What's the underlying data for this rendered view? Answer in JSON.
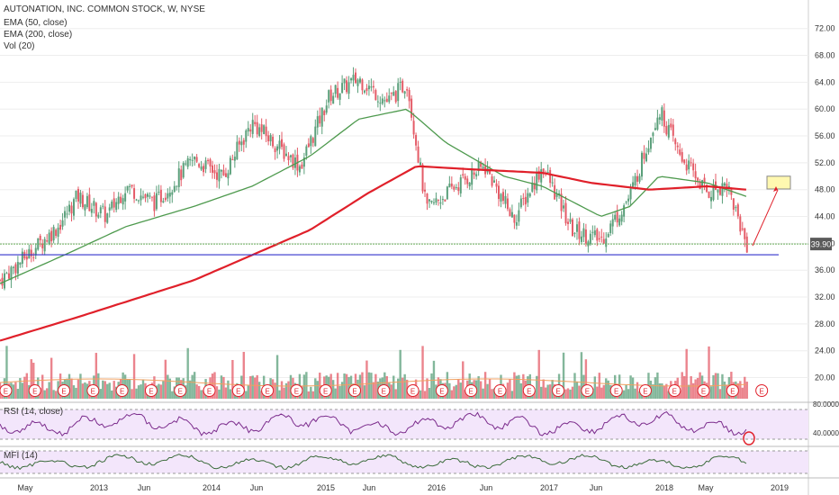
{
  "legend": {
    "title": "AUTONATION, INC. COMMON STOCK, W, NYSE",
    "indicators": [
      "EMA (50, close)",
      "EMA (200, close)",
      "Vol (20)"
    ]
  },
  "rsi_label": "RSI (14, close)",
  "mfi_label": "MFI (14)",
  "price_badge": "39.90",
  "colors": {
    "up": "#5a9f7a",
    "down": "#e45b67",
    "ema50": "#4e9a4e",
    "ema200": "#e0202a",
    "support": "#3333cc",
    "price_line": "#6aaf5a",
    "rsi": "#7b2b8c",
    "mfi": "#3b6b3b",
    "pane_bg": "#f3e6fb",
    "target_box": "#fff8b0"
  },
  "chart_data": {
    "type": "candlestick",
    "title": "AUTONATION, INC. COMMON STOCK, W, NYSE",
    "y_ticks": [
      "72.00",
      "68.00",
      "64.00",
      "60.00",
      "56.00",
      "52.00",
      "48.00",
      "44.00",
      "40.00",
      "36.00",
      "32.00",
      "28.00",
      "24.00",
      "20.00"
    ],
    "ylim": [
      18.6,
      73.3
    ],
    "x_ticks": [
      "May",
      "2013",
      "Jun",
      "2014",
      "Jun",
      "2015",
      "Jun",
      "2016",
      "Jun",
      "2017",
      "Jun",
      "2018",
      "May",
      "2019"
    ],
    "rsi_ticks": [
      "80.0000",
      "40.0000"
    ],
    "price_points": [
      [
        "2012-05",
        34.5
      ],
      [
        "2012-08",
        38.5
      ],
      [
        "2012-11",
        42.5
      ],
      [
        "2013-01",
        47.0
      ],
      [
        "2013-04",
        44.0
      ],
      [
        "2013-06",
        48.5
      ],
      [
        "2013-09",
        46.0
      ],
      [
        "2014-01",
        52.5
      ],
      [
        "2014-04",
        50.0
      ],
      [
        "2014-07",
        58.0
      ],
      [
        "2014-10",
        54.0
      ],
      [
        "2014-12",
        51.5
      ],
      [
        "2015-03",
        62.0
      ],
      [
        "2015-06",
        64.5
      ],
      [
        "2015-09",
        61.0
      ],
      [
        "2015-11",
        64.0
      ],
      [
        "2016-01",
        45.0
      ],
      [
        "2016-04",
        48.5
      ],
      [
        "2016-07",
        51.5
      ],
      [
        "2016-10",
        43.5
      ],
      [
        "2017-01",
        51.5
      ],
      [
        "2017-04",
        42.0
      ],
      [
        "2017-07",
        40.5
      ],
      [
        "2017-10",
        47.0
      ],
      [
        "2018-01",
        60.0
      ],
      [
        "2018-03",
        53.5
      ],
      [
        "2018-06",
        47.5
      ],
      [
        "2018-08",
        49.0
      ],
      [
        "2018-10",
        39.9
      ]
    ],
    "ema50_points": [
      [
        "2012-05",
        34.0
      ],
      [
        "2012-12",
        38.5
      ],
      [
        "2013-06",
        42.5
      ],
      [
        "2014-01",
        45.5
      ],
      [
        "2014-07",
        48.5
      ],
      [
        "2015-01",
        53.0
      ],
      [
        "2015-06",
        58.5
      ],
      [
        "2015-11",
        60.0
      ],
      [
        "2016-03",
        55.0
      ],
      [
        "2016-09",
        50.0
      ],
      [
        "2017-01",
        48.5
      ],
      [
        "2017-07",
        44.0
      ],
      [
        "2017-10",
        45.5
      ],
      [
        "2018-01",
        50.0
      ],
      [
        "2018-06",
        49.0
      ],
      [
        "2018-10",
        47.0
      ]
    ],
    "ema200_points": [
      [
        "2012-05",
        25.5
      ],
      [
        "2013-01",
        29.0
      ],
      [
        "2014-01",
        34.5
      ],
      [
        "2015-01",
        42.0
      ],
      [
        "2015-07",
        47.5
      ],
      [
        "2015-12",
        51.5
      ],
      [
        "2016-06",
        51.0
      ],
      [
        "2017-01",
        50.5
      ],
      [
        "2017-06",
        49.0
      ],
      [
        "2017-12",
        48.0
      ],
      [
        "2018-06",
        48.5
      ],
      [
        "2018-10",
        48.0
      ]
    ],
    "support_level": 38.3,
    "last_price": 39.9,
    "target_box": [
      50.0,
      48.1
    ],
    "legend": [
      "EMA (50, close)",
      "EMA (200, close)",
      "Vol (20)"
    ]
  }
}
